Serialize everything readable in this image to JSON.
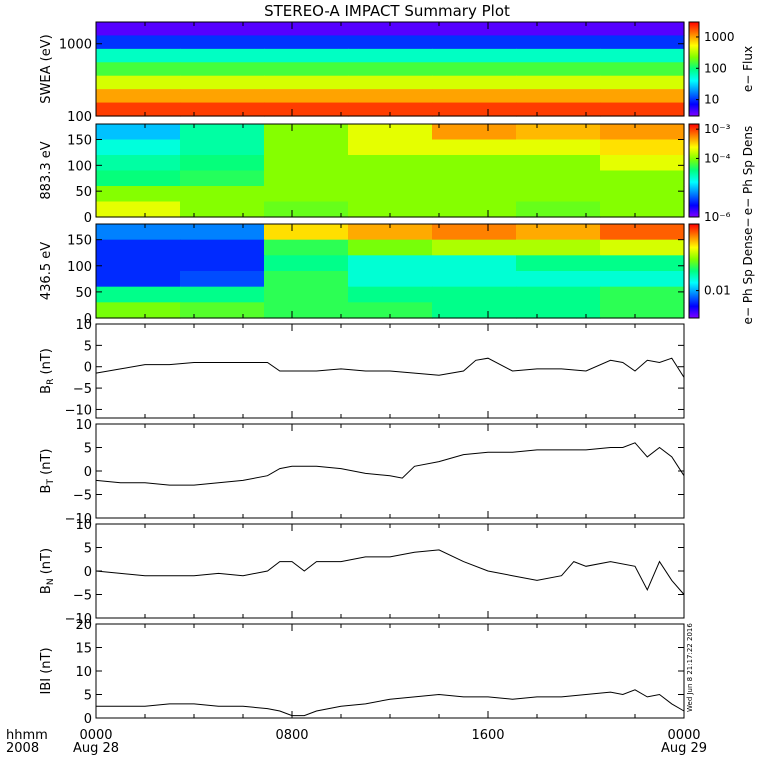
{
  "title": "STEREO-A IMPACT Summary Plot",
  "footer": {
    "hhmm_label": "hhmm",
    "year_label": "2008",
    "start_date": "Aug 28",
    "end_date": "Aug 29"
  },
  "timestamp": "Wed Jun 8 21:17:22 2016",
  "spectrogram_colors": [
    "#7f00ff",
    "#0000ff",
    "#0080ff",
    "#00ffff",
    "#00ff80",
    "#80ff00",
    "#ffff00",
    "#ff8000",
    "#ff0000"
  ],
  "chart_data": [
    {
      "type": "heatmap",
      "ylabel": "SWEA (eV)",
      "yscale": "log",
      "ylim": [
        100,
        2000
      ],
      "yticks": [
        {
          "v": 100,
          "label": "100"
        },
        {
          "v": 1000,
          "label": "1000"
        }
      ],
      "colorbar": {
        "label": "e− Flux",
        "scale": "log",
        "range": [
          3,
          3000
        ],
        "ticks": [
          {
            "v": 10,
            "label": "10"
          },
          {
            "v": 100,
            "label": "100"
          },
          {
            "v": 1000,
            "label": "1000"
          }
        ]
      },
      "x": [
        "0000",
        "0400",
        "0800",
        "1200",
        "1600",
        "2000",
        "0000"
      ],
      "y": [
        1800,
        1200,
        700,
        400,
        250,
        170,
        120
      ],
      "z": [
        [
          4,
          4,
          4,
          4,
          4,
          4,
          4
        ],
        [
          10,
          10,
          10,
          10,
          10,
          10,
          10
        ],
        [
          60,
          60,
          60,
          60,
          60,
          60,
          60
        ],
        [
          150,
          150,
          150,
          150,
          150,
          150,
          150
        ],
        [
          400,
          400,
          400,
          400,
          400,
          400,
          400
        ],
        [
          1000,
          1000,
          1000,
          1000,
          1000,
          1000,
          1000
        ],
        [
          2000,
          2000,
          2000,
          2000,
          2000,
          2000,
          2000
        ]
      ]
    },
    {
      "type": "heatmap",
      "ylabel": "883.3 eV",
      "ylim": [
        0,
        180
      ],
      "yticks": [
        {
          "v": 0,
          "label": "0"
        },
        {
          "v": 50,
          "label": "50"
        },
        {
          "v": 100,
          "label": "100"
        },
        {
          "v": 150,
          "label": "150"
        }
      ],
      "colorbar": {
        "label": "e− Ph Sp Dens",
        "scale": "log",
        "range": [
          1e-06,
          0.0015
        ],
        "ticks": [
          {
            "v": 1e-06,
            "label": "10⁻⁶"
          },
          {
            "v": 0.0001,
            "label": "10⁻⁴"
          },
          {
            "v": 0.001,
            "label": "10⁻³"
          }
        ]
      },
      "x": [
        "0000",
        "0400",
        "0800",
        "1200",
        "1600",
        "2000",
        "0000"
      ],
      "y": [
        165,
        135,
        105,
        75,
        45,
        15
      ],
      "z": [
        [
          1e-05,
          3e-05,
          0.0001,
          0.0002,
          0.0005,
          0.0004,
          0.0005
        ],
        [
          2e-05,
          3e-05,
          0.0001,
          0.0002,
          0.0002,
          0.0002,
          0.0003
        ],
        [
          3e-05,
          4e-05,
          0.0001,
          0.0001,
          0.0001,
          0.0001,
          0.0002
        ],
        [
          4e-05,
          5e-05,
          0.0001,
          0.0001,
          0.0001,
          0.0001,
          0.0001
        ],
        [
          0.0001,
          0.0001,
          0.0001,
          0.0001,
          0.0001,
          0.0001,
          0.0001
        ],
        [
          0.0002,
          0.0001,
          8e-05,
          0.0001,
          0.0001,
          8e-05,
          0.0001
        ]
      ]
    },
    {
      "type": "heatmap",
      "ylabel": "436.5 eV",
      "ylim": [
        0,
        180
      ],
      "yticks": [
        {
          "v": 0,
          "label": "0"
        },
        {
          "v": 50,
          "label": "50"
        },
        {
          "v": 100,
          "label": "100"
        },
        {
          "v": 150,
          "label": "150"
        }
      ],
      "colorbar": {
        "label": "e− Ph Sp Dense−",
        "scale": "log",
        "range": [
          0.002,
          0.5
        ],
        "ticks": [
          {
            "v": 0.01,
            "label": "0.01"
          }
        ]
      },
      "x": [
        "0000",
        "0400",
        "0800",
        "1200",
        "1600",
        "2000",
        "0000"
      ],
      "y": [
        165,
        135,
        105,
        75,
        45,
        15
      ],
      "z": [
        [
          0.008,
          0.008,
          0.15,
          0.2,
          0.25,
          0.2,
          0.3
        ],
        [
          0.005,
          0.005,
          0.04,
          0.06,
          0.08,
          0.08,
          0.1
        ],
        [
          0.005,
          0.005,
          0.03,
          0.02,
          0.02,
          0.03,
          0.03
        ],
        [
          0.005,
          0.006,
          0.04,
          0.02,
          0.02,
          0.02,
          0.02
        ],
        [
          0.03,
          0.03,
          0.04,
          0.03,
          0.03,
          0.03,
          0.04
        ],
        [
          0.06,
          0.05,
          0.04,
          0.04,
          0.03,
          0.03,
          0.04
        ]
      ]
    },
    {
      "type": "line",
      "ylabel": "B",
      "ylabel_sub": "R",
      "ylabel_unit": "(nT)",
      "ylim": [
        -12,
        10
      ],
      "yticks": [
        {
          "v": -10,
          "label": "−10"
        },
        {
          "v": -5,
          "label": "−5"
        },
        {
          "v": 0,
          "label": "0"
        },
        {
          "v": 5,
          "label": "5"
        },
        {
          "v": 10,
          "label": "10"
        }
      ],
      "x": [
        0,
        1,
        2,
        3,
        4,
        5,
        6,
        7,
        7.5,
        8,
        9,
        10,
        11,
        12,
        13,
        14,
        15,
        15.5,
        16,
        17,
        18,
        19,
        20,
        21,
        21.5,
        22,
        22.5,
        23,
        23.5,
        24
      ],
      "y": [
        -1.5,
        -0.5,
        0.5,
        0.5,
        1,
        1,
        1,
        1,
        -1,
        -1,
        -1,
        -0.5,
        -1,
        -1,
        -1.5,
        -2,
        -1,
        1.5,
        2,
        -1,
        -0.5,
        -0.5,
        -1,
        1.5,
        1,
        -1,
        1.5,
        1,
        2,
        -2.5
      ]
    },
    {
      "type": "line",
      "ylabel": "B",
      "ylabel_sub": "T",
      "ylabel_unit": "(nT)",
      "ylim": [
        -10,
        10
      ],
      "yticks": [
        {
          "v": -10,
          "label": "−10"
        },
        {
          "v": -5,
          "label": "−5"
        },
        {
          "v": 0,
          "label": "0"
        },
        {
          "v": 5,
          "label": "5"
        },
        {
          "v": 10,
          "label": "10"
        }
      ],
      "x": [
        0,
        1,
        2,
        3,
        4,
        5,
        6,
        7,
        7.5,
        8,
        9,
        10,
        11,
        12,
        12.5,
        13,
        14,
        15,
        16,
        17,
        18,
        19,
        20,
        21,
        21.5,
        22,
        22.5,
        23,
        23.5,
        24
      ],
      "y": [
        -2,
        -2.5,
        -2.5,
        -3,
        -3,
        -2.5,
        -2,
        -1,
        0.5,
        1,
        1,
        0.5,
        -0.5,
        -1,
        -1.5,
        1,
        2,
        3.5,
        4,
        4,
        4.5,
        4.5,
        4.5,
        5,
        5,
        6,
        3,
        5,
        3,
        -1
      ]
    },
    {
      "type": "line",
      "ylabel": "B",
      "ylabel_sub": "N",
      "ylabel_unit": "(nT)",
      "ylim": [
        -10,
        10
      ],
      "yticks": [
        {
          "v": -10,
          "label": "−10"
        },
        {
          "v": -5,
          "label": "−5"
        },
        {
          "v": 0,
          "label": "0"
        },
        {
          "v": 5,
          "label": "5"
        },
        {
          "v": 10,
          "label": "10"
        }
      ],
      "x": [
        0,
        1,
        2,
        3,
        4,
        5,
        6,
        7,
        7.5,
        8,
        8.5,
        9,
        10,
        11,
        12,
        13,
        14,
        15,
        16,
        17,
        18,
        19,
        19.5,
        20,
        21,
        22,
        22.5,
        23,
        23.5,
        24
      ],
      "y": [
        0,
        -0.5,
        -1,
        -1,
        -1,
        -0.5,
        -1,
        0,
        2,
        2,
        0,
        2,
        2,
        3,
        3,
        4,
        4.5,
        2,
        0,
        -1,
        -2,
        -1,
        2,
        1,
        2,
        1,
        -4,
        2,
        -2,
        -5
      ]
    },
    {
      "type": "line",
      "ylabel": "|B| (nT)",
      "ylabel_display": "IBI (nT)",
      "ylim": [
        0,
        20
      ],
      "yticks": [
        {
          "v": 0,
          "label": "0"
        },
        {
          "v": 5,
          "label": "5"
        },
        {
          "v": 10,
          "label": "10"
        },
        {
          "v": 15,
          "label": "15"
        },
        {
          "v": 20,
          "label": "20"
        }
      ],
      "x": [
        0,
        1,
        2,
        3,
        4,
        5,
        6,
        7,
        7.5,
        8,
        8.5,
        9,
        10,
        11,
        12,
        13,
        14,
        15,
        16,
        17,
        18,
        19,
        20,
        21,
        21.5,
        22,
        22.5,
        23,
        23.5,
        24
      ],
      "y": [
        2.5,
        2.5,
        2.5,
        3,
        3,
        2.5,
        2.5,
        2,
        1.5,
        0.5,
        0.5,
        1.5,
        2.5,
        3,
        4,
        4.5,
        5,
        4.5,
        4.5,
        4,
        4.5,
        4.5,
        5,
        5.5,
        5,
        6,
        4.5,
        5,
        3,
        1.5
      ]
    }
  ],
  "x_axis": {
    "ticks": [
      {
        "hour": 0,
        "label": "0000"
      },
      {
        "hour": 8,
        "label": "0800"
      },
      {
        "hour": 16,
        "label": "1600"
      },
      {
        "hour": 24,
        "label": "0000"
      }
    ],
    "minor_every_hours": 2,
    "range_hours": [
      0,
      24
    ]
  }
}
